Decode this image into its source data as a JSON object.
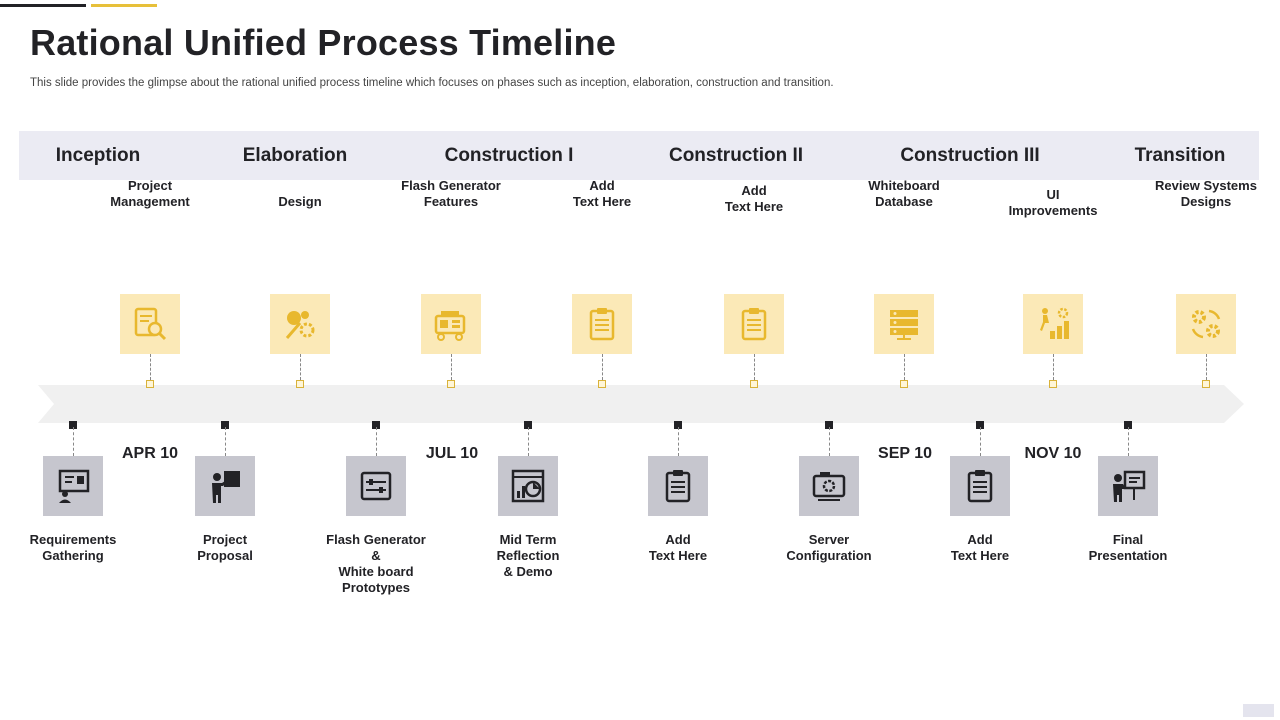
{
  "slide": {
    "title": "Rational Unified Process Timeline",
    "subtitle": "This slide provides the glimpse about the rational unified process timeline which focuses on phases such as inception, elaboration, construction and transition."
  },
  "phases": [
    "Inception",
    "Elaboration",
    "Construction I",
    "Construction II",
    "Construction III",
    "Transition"
  ],
  "top_milestones": [
    {
      "label": "Project\nManagement",
      "icon": "document-search-icon"
    },
    {
      "label": "Design",
      "icon": "design-tools-icon"
    },
    {
      "label": "Flash Generator\nFeatures",
      "icon": "generator-icon"
    },
    {
      "label": "Add\nText Here",
      "icon": "clipboard-icon"
    },
    {
      "label": "Add\nText Here",
      "icon": "clipboard-icon"
    },
    {
      "label": "Whiteboard\nDatabase",
      "icon": "server-database-icon"
    },
    {
      "label": "UI\nImprovements",
      "icon": "growth-stairs-icon"
    },
    {
      "label": "Review Systems\nDesigns",
      "icon": "gears-cycle-icon"
    }
  ],
  "bottom_milestones": [
    {
      "label": "Requirements\nGathering",
      "icon": "presentation-board-icon"
    },
    {
      "label": "Project\nProposal",
      "icon": "presenter-icon"
    },
    {
      "label": "Flash Generator\n&\nWhite board\nPrototypes",
      "icon": "control-panel-icon"
    },
    {
      "label": "Mid Term\nReflection\n& Demo",
      "icon": "analytics-report-icon"
    },
    {
      "label": "Add\nText Here",
      "icon": "clipboard-icon"
    },
    {
      "label": "Server\nConfiguration",
      "icon": "network-device-icon"
    },
    {
      "label": "Add\nText Here",
      "icon": "clipboard-icon"
    },
    {
      "label": "Final\nPresentation",
      "icon": "presenter-board-icon"
    }
  ],
  "dates": [
    "APR 10",
    "JUL 10",
    "SEP 10",
    "NOV 10"
  ],
  "colors": {
    "accent_gold": "#e7c03a",
    "icon_gold": "#e8b82e",
    "top_box_fill": "#fbe9b7",
    "bottom_box_fill": "#c6c6ce",
    "dark": "#222226",
    "phase_band": "#ebebf3",
    "axis": "#f0f0f0"
  }
}
